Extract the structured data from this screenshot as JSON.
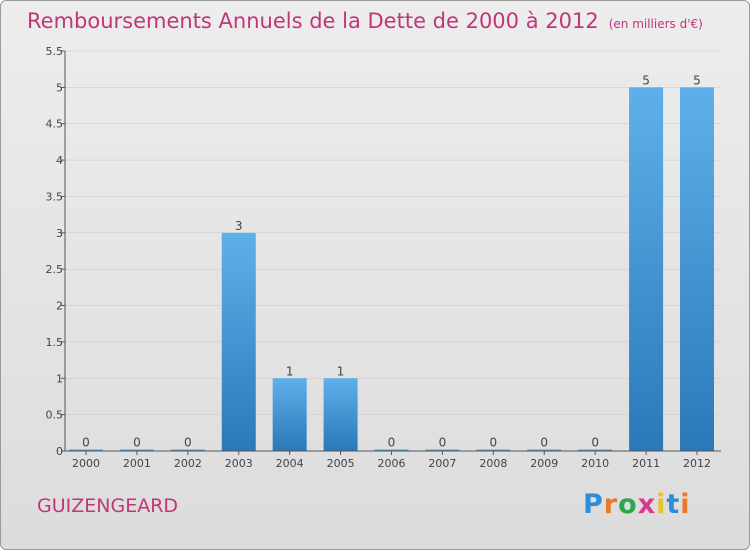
{
  "header": {
    "title": "Remboursements Annuels de la Dette de 2000 à 2012",
    "subtitle": "(en milliers d'€)"
  },
  "footer": {
    "commune": "GUIZENGEARD",
    "logo_letters": [
      "P",
      "r",
      "o",
      "x",
      "i",
      "t",
      "i"
    ],
    "logo_colors": [
      "#2a8fd6",
      "#e8782a",
      "#2aa84a",
      "#d63a8a",
      "#e8c22a",
      "#2a8fd6",
      "#e8782a"
    ]
  },
  "colors": {
    "title": "#c2357b",
    "bar_top": "#5eb0ea",
    "bar_bottom": "#2a78b8",
    "axis": "#555555",
    "grid": "#c8c8c8"
  },
  "chart_data": {
    "type": "bar",
    "categories": [
      "2000",
      "2001",
      "2002",
      "2003",
      "2004",
      "2005",
      "2006",
      "2007",
      "2008",
      "2009",
      "2010",
      "2011",
      "2012"
    ],
    "values": [
      0,
      0,
      0,
      3,
      1,
      1,
      0,
      0,
      0,
      0,
      0,
      5,
      5
    ],
    "value_labels": [
      "0",
      "0",
      "0",
      "3",
      "1",
      "1",
      "0",
      "0",
      "0",
      "0",
      "0",
      "5",
      "5"
    ],
    "y_ticks": [
      0,
      0.5,
      1,
      1.5,
      2,
      2.5,
      3,
      3.5,
      4,
      4.5,
      5,
      5.5
    ],
    "y_tick_labels": [
      "0",
      "0.5",
      "1",
      "1.5",
      "2",
      "2.5",
      "3",
      "3.5",
      "4",
      "4.5",
      "5",
      "5.5"
    ],
    "ylim": [
      0,
      5.5
    ],
    "grid": true,
    "title": "Remboursements Annuels de la Dette de 2000 à 2012",
    "xlabel": "",
    "ylabel": ""
  }
}
